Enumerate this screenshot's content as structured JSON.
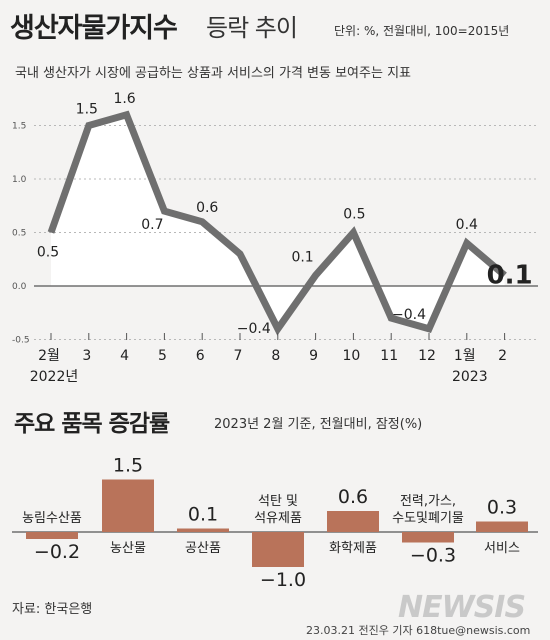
{
  "header": {
    "title_main": "생산자물가지수",
    "title_sub": "등락 추이",
    "unit": "단위: %, 전월대비, 100=2015년",
    "description": "국내 생산자가 시장에 공급하는 상품과 서비스의 가격 변동 보여주는 지표"
  },
  "chart2_header": {
    "title": "주요 품목 증감률",
    "note": "2023년 2월 기준, 전월대비, 잠정(%)"
  },
  "footer": {
    "source": "자료: 한국은행",
    "credit": "23.03.21 전진우 기자 618tue@newsis.com",
    "logo": "NEWSIS"
  },
  "colors": {
    "line": "#6f6f6f",
    "bar": "#b9735a",
    "area": "#ffffff",
    "grid": "#b8b8b8"
  },
  "chart_data": [
    {
      "type": "line",
      "title": "생산자물가지수 등락 추이",
      "categories": [
        "2월",
        "3",
        "4",
        "5",
        "6",
        "7",
        "8",
        "9",
        "10",
        "11",
        "12",
        "1월",
        "2"
      ],
      "year_labels": [
        {
          "at": 0,
          "label": "2022년"
        },
        {
          "at": 11,
          "label": "2023"
        }
      ],
      "y_ticks": [
        "1.5",
        "1.0",
        "0.5",
        "0.0",
        "-0.5"
      ],
      "series": [
        {
          "values": [
            0.5,
            1.5,
            1.6,
            0.7,
            0.6,
            0.3,
            -0.4,
            0.1,
            0.5,
            -0.3,
            -0.4,
            0.4,
            0.1
          ],
          "labels": [
            "0.5",
            "1.5",
            "1.6",
            "0.7",
            "0.6",
            "",
            "−0.4",
            "0.1",
            "0.5",
            "",
            "−0.4",
            "0.4",
            "0.1"
          ]
        }
      ],
      "ylim": [
        -0.5,
        1.75
      ],
      "grid": true
    },
    {
      "type": "bar",
      "title": "주요 품목 증감률",
      "categories": [
        "농림수산품",
        "농산물",
        "공산품",
        "석탄 및\n석유제품",
        "화학제품",
        "전력,가스,\n수도및폐기물",
        "서비스"
      ],
      "values": [
        -0.2,
        1.5,
        0.1,
        -1.0,
        0.6,
        -0.3,
        0.3
      ],
      "value_labels": [
        "−0.2",
        "1.5",
        "0.1",
        "−1.0",
        "0.6",
        "−0.3",
        "0.3"
      ]
    }
  ]
}
